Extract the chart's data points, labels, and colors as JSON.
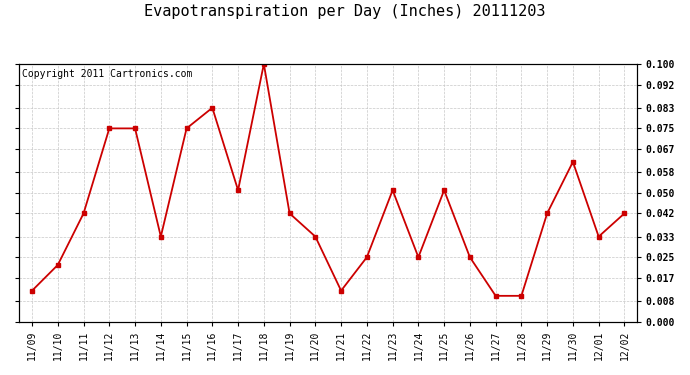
{
  "title": "Evapotranspiration per Day (Inches) 20111203",
  "copyright": "Copyright 2011 Cartronics.com",
  "dates": [
    "11/09",
    "11/10",
    "11/11",
    "11/12",
    "11/13",
    "11/14",
    "11/15",
    "11/16",
    "11/17",
    "11/18",
    "11/19",
    "11/20",
    "11/21",
    "11/22",
    "11/23",
    "11/24",
    "11/25",
    "11/26",
    "11/27",
    "11/28",
    "11/29",
    "11/30",
    "12/01",
    "12/02"
  ],
  "values": [
    0.012,
    0.022,
    0.042,
    0.075,
    0.075,
    0.033,
    0.075,
    0.083,
    0.051,
    0.1,
    0.042,
    0.033,
    0.012,
    0.025,
    0.051,
    0.025,
    0.051,
    0.025,
    0.01,
    0.01,
    0.042,
    0.062,
    0.033,
    0.042
  ],
  "ylim": [
    0.0,
    0.1
  ],
  "yticks": [
    0.0,
    0.008,
    0.017,
    0.025,
    0.033,
    0.042,
    0.05,
    0.058,
    0.067,
    0.075,
    0.083,
    0.092,
    0.1
  ],
  "line_color": "#cc0000",
  "marker": "s",
  "marker_size": 3,
  "line_width": 1.3,
  "bg_color": "#ffffff",
  "plot_bg_color": "#ffffff",
  "grid_color": "#c8c8c8",
  "title_fontsize": 11,
  "copyright_fontsize": 7,
  "tick_fontsize": 7
}
